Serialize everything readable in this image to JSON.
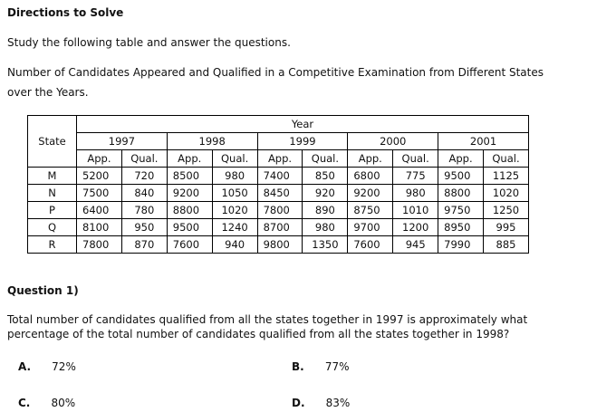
{
  "header": {
    "title": "Directions to Solve",
    "instruction": "Study the following table and answer the questions.",
    "caption_line1": "Number of Candidates Appeared and Qualified in a Competitive Examination from Different States",
    "caption_line2": "over the Years."
  },
  "table": {
    "state_header": "State",
    "year_header": "Year",
    "years": [
      "1997",
      "1998",
      "1999",
      "2000",
      "2001"
    ],
    "sub_headers": [
      "App.",
      "Qual."
    ],
    "rows": [
      {
        "state": "M",
        "values": [
          "5200",
          "720",
          "8500",
          "980",
          "7400",
          "850",
          "6800",
          "775",
          "9500",
          "1125"
        ]
      },
      {
        "state": "N",
        "values": [
          "7500",
          "840",
          "9200",
          "1050",
          "8450",
          "920",
          "9200",
          "980",
          "8800",
          "1020"
        ]
      },
      {
        "state": "P",
        "values": [
          "6400",
          "780",
          "8800",
          "1020",
          "7800",
          "890",
          "8750",
          "1010",
          "9750",
          "1250"
        ]
      },
      {
        "state": "Q",
        "values": [
          "8100",
          "950",
          "9500",
          "1240",
          "8700",
          "980",
          "9700",
          "1200",
          "8950",
          "995"
        ]
      },
      {
        "state": "R",
        "values": [
          "7800",
          "870",
          "7600",
          "940",
          "9800",
          "1350",
          "7600",
          "945",
          "7990",
          "885"
        ]
      }
    ]
  },
  "question": {
    "label": "Question 1)",
    "text_line1": "Total number of candidates qualified from all the states together in 1997 is approximately what",
    "text_line2": "percentage of the total number of candidates qualified from all the states together in 1998?",
    "options": [
      {
        "label": "A.",
        "value": "72%"
      },
      {
        "label": "B.",
        "value": "77%"
      },
      {
        "label": "C.",
        "value": "80%"
      },
      {
        "label": "D.",
        "value": "83%"
      }
    ]
  }
}
